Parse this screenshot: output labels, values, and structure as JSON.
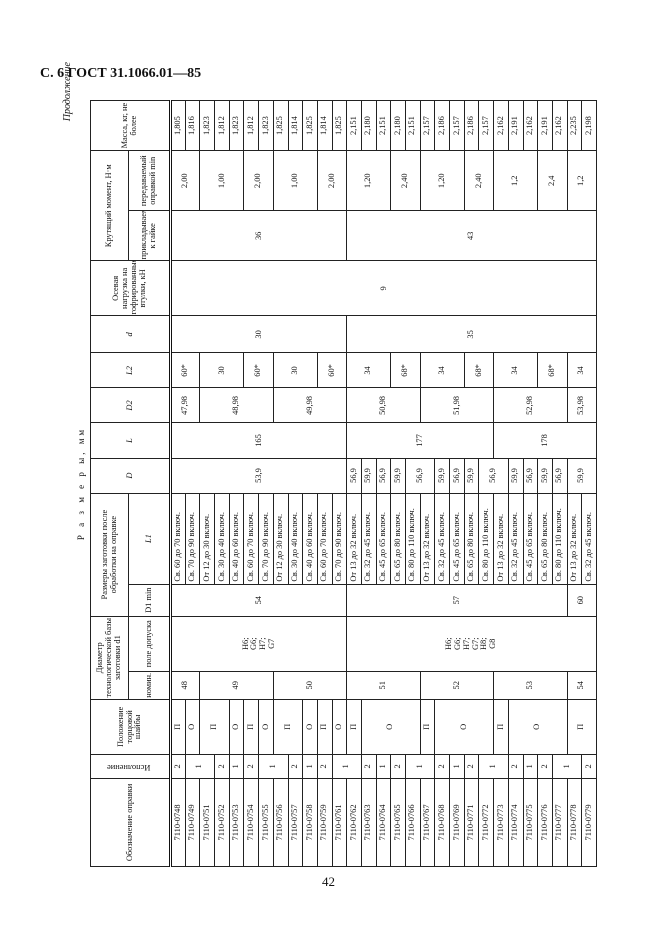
{
  "page": {
    "title": "С. 6 ГОСТ 31.1066.01—85",
    "number": "42",
    "continued": "Продолжение",
    "caption": "Р а з м е р ы, мм"
  },
  "table": {
    "header": {
      "designation": "Обозначение оправки",
      "version": "Исполнение",
      "washer_position": "Положение торцовой шайбы",
      "base_diameter": "Диаметр технологической базы заготовки d1",
      "base_nominal": "номин.",
      "base_tolerance": "поле допуска",
      "blank_sizes": "Размеры заготовки после обработки на оправке",
      "D1_min": "D1 min",
      "L1": "L1",
      "D": "D",
      "L": "L",
      "D2": "D2",
      "L2": "L2",
      "d": "d",
      "axial_load": "Осевая нагрузка на гофрированные втулки, кН",
      "torque": "Крутящий момент, Н·м",
      "torque_applied": "прикладываемый к гайке",
      "torque_transmitted": "передаваемый оправкой min",
      "mass": "Масса, кг, не более"
    },
    "designation": [
      "7110-0748",
      "7110-0749",
      "7110-0751",
      "7110-0752",
      "7110-0753",
      "7110-0754",
      "7110-0755",
      "7110-0756",
      "7110-0757",
      "7110-0758",
      "7110-0759",
      "7110-0761",
      "7110-0762",
      "7110-0763",
      "7110-0764",
      "7110-0765",
      "7110-0766",
      "7110-0767",
      "7110-0768",
      "7110-0769",
      "7110-0771",
      "7110-0772",
      "7110-0773",
      "7110-0774",
      "7110-0775",
      "7110-0776",
      "7110-0777",
      "7110-0778",
      "7110-0779"
    ],
    "version": [
      {
        "v": "2",
        "n": 1
      },
      {
        "v": "1",
        "n": 2
      },
      {
        "v": "2",
        "n": 1
      },
      {
        "v": "1",
        "n": 1
      },
      {
        "v": "2",
        "n": 1
      },
      {
        "v": "1",
        "n": 2
      },
      {
        "v": "2",
        "n": 1
      },
      {
        "v": "1",
        "n": 1
      },
      {
        "v": "2",
        "n": 1
      },
      {
        "v": "1",
        "n": 2
      },
      {
        "v": "2",
        "n": 1
      },
      {
        "v": "1",
        "n": 1
      },
      {
        "v": "2",
        "n": 1
      },
      {
        "v": "1",
        "n": 2
      },
      {
        "v": "2",
        "n": 1
      },
      {
        "v": "1",
        "n": 1
      },
      {
        "v": "2",
        "n": 1
      },
      {
        "v": "1",
        "n": 2
      },
      {
        "v": "2",
        "n": 1
      },
      {
        "v": "1",
        "n": 1
      },
      {
        "v": "2",
        "n": 1
      },
      {
        "v": "1",
        "n": 2
      },
      {
        "v": "2",
        "n": 1
      }
    ],
    "washer_position": [
      {
        "v": "П",
        "n": 1
      },
      {
        "v": "О",
        "n": 1
      },
      {
        "v": "П",
        "n": 2
      },
      {
        "v": "О",
        "n": 1
      },
      {
        "v": "П",
        "n": 1
      },
      {
        "v": "О",
        "n": 1
      },
      {
        "v": "П",
        "n": 2
      },
      {
        "v": "О",
        "n": 1
      },
      {
        "v": "П",
        "n": 1
      },
      {
        "v": "О",
        "n": 1
      },
      {
        "v": "П",
        "n": 1
      },
      {
        "v": "О",
        "n": 4
      },
      {
        "v": "П",
        "n": 1
      },
      {
        "v": "О",
        "n": 4
      },
      {
        "v": "П",
        "n": 1
      },
      {
        "v": "О",
        "n": 4
      },
      {
        "v": "П",
        "n": 2
      }
    ],
    "base_nominal": [
      {
        "v": "48",
        "n": 2
      },
      {
        "v": "49",
        "n": 5
      },
      {
        "v": "50",
        "n": 5
      },
      {
        "v": "51",
        "n": 5
      },
      {
        "v": "52",
        "n": 5
      },
      {
        "v": "53",
        "n": 5
      },
      {
        "v": "54",
        "n": 2
      }
    ],
    "base_tolerance": [
      {
        "v": "H6;\nG6;\nH7;\nG7",
        "n": 12
      },
      {
        "v": "H6;\nG6;\nH7;\nG7;\nH8;\nG8",
        "n": 17
      }
    ],
    "D1_min": [
      {
        "v": "54",
        "n": 12
      },
      {
        "v": "57",
        "n": 15
      },
      {
        "v": "60",
        "n": 2
      }
    ],
    "L1": [
      "Св. 60 до 70 включ.",
      "Св. 70 до 90 включ.",
      "От 12 до 30 включ.",
      "Св. 30 до 40 включ.",
      "Св. 40 до 60 включ.",
      "Св. 60 до 70 включ.",
      "Св. 70 до 90 включ.",
      "От 12 до 30 включ.",
      "Св. 30 до 40 включ.",
      "Св. 40 до 60 включ.",
      "Св. 60 до 70 включ.",
      "Св. 70 до 90 включ.",
      "От 13 до 32 включ.",
      "Св. 32 до 45 включ.",
      "Св. 45 до 65 включ.",
      "Св. 65 до 80 включ.",
      "Св. 80 до 110 включ.",
      "От 13 до 32 включ.",
      "Св. 32 до 45 включ.",
      "Св. 45 до 65 включ.",
      "Св. 65 до 80 включ.",
      "Св. 80 до 110 включ.",
      "От 13 до 32 включ.",
      "Св. 32 до 45 включ.",
      "Св. 45 до 65 включ.",
      "Св. 65 до 80 включ.",
      "Св. 80 до 110 включ.",
      "От 13 до 32 включ.",
      "Св. 32 до 45 включ."
    ],
    "D": [
      {
        "v": "53,9",
        "n": 12
      },
      {
        "v": "56,9",
        "n": 1
      },
      {
        "v": "59,9",
        "n": 1
      },
      {
        "v": "56,9",
        "n": 1
      },
      {
        "v": "59,9",
        "n": 1
      },
      {
        "v": "56,9",
        "n": 2
      },
      {
        "v": "59,9",
        "n": 1
      },
      {
        "v": "56,9",
        "n": 1
      },
      {
        "v": "59,9",
        "n": 1
      },
      {
        "v": "56,9",
        "n": 2
      },
      {
        "v": "59,9",
        "n": 1
      },
      {
        "v": "56,9",
        "n": 1
      },
      {
        "v": "59,9",
        "n": 1
      },
      {
        "v": "56,9",
        "n": 1
      },
      {
        "v": "59,9",
        "n": 2
      }
    ],
    "L": [
      {
        "v": "165",
        "n": 12
      },
      {
        "v": "177",
        "n": 10
      },
      {
        "v": "178",
        "n": 7
      }
    ],
    "D2": [
      {
        "v": "47,98",
        "n": 2
      },
      {
        "v": "48,98",
        "n": 5
      },
      {
        "v": "49,98",
        "n": 5
      },
      {
        "v": "50,98",
        "n": 5
      },
      {
        "v": "51,98",
        "n": 5
      },
      {
        "v": "52,98",
        "n": 5
      },
      {
        "v": "53,98",
        "n": 2
      }
    ],
    "L2": [
      {
        "v": "60*",
        "n": 2
      },
      {
        "v": "30",
        "n": 3
      },
      {
        "v": "60*",
        "n": 2
      },
      {
        "v": "30",
        "n": 3
      },
      {
        "v": "60*",
        "n": 2
      },
      {
        "v": "34",
        "n": 3
      },
      {
        "v": "68*",
        "n": 2
      },
      {
        "v": "34",
        "n": 3
      },
      {
        "v": "68*",
        "n": 2
      },
      {
        "v": "34",
        "n": 3
      },
      {
        "v": "68*",
        "n": 2
      },
      {
        "v": "34",
        "n": 2
      }
    ],
    "d": [
      {
        "v": "30",
        "n": 12
      },
      {
        "v": "35",
        "n": 17
      }
    ],
    "axial_load": [
      {
        "v": "9",
        "n": 29
      }
    ],
    "torque_applied": [
      {
        "v": "36",
        "n": 12
      },
      {
        "v": "43",
        "n": 17
      }
    ],
    "torque_transmitted": [
      {
        "v": "2,00",
        "n": 2
      },
      {
        "v": "1,00",
        "n": 3
      },
      {
        "v": "2,00",
        "n": 2
      },
      {
        "v": "1,00",
        "n": 3
      },
      {
        "v": "2,00",
        "n": 2
      },
      {
        "v": "1,20",
        "n": 3
      },
      {
        "v": "2,40",
        "n": 2
      },
      {
        "v": "1,20",
        "n": 3
      },
      {
        "v": "2,40",
        "n": 2
      },
      {
        "v": "1,2",
        "n": 3
      },
      {
        "v": "2,4",
        "n": 2
      },
      {
        "v": "1,2",
        "n": 2
      }
    ],
    "mass": [
      "1,805",
      "1,816",
      "1,823",
      "1,812",
      "1,823",
      "1,812",
      "1,823",
      "1,825",
      "1,814",
      "1,825",
      "1,814",
      "1,825",
      "2,151",
      "2,180",
      "2,151",
      "2,180",
      "2,151",
      "2,157",
      "2,186",
      "2,157",
      "2,186",
      "2,157",
      "2,162",
      "2,191",
      "2,162",
      "2,191",
      "2,162",
      "2,235",
      "2,198"
    ]
  }
}
